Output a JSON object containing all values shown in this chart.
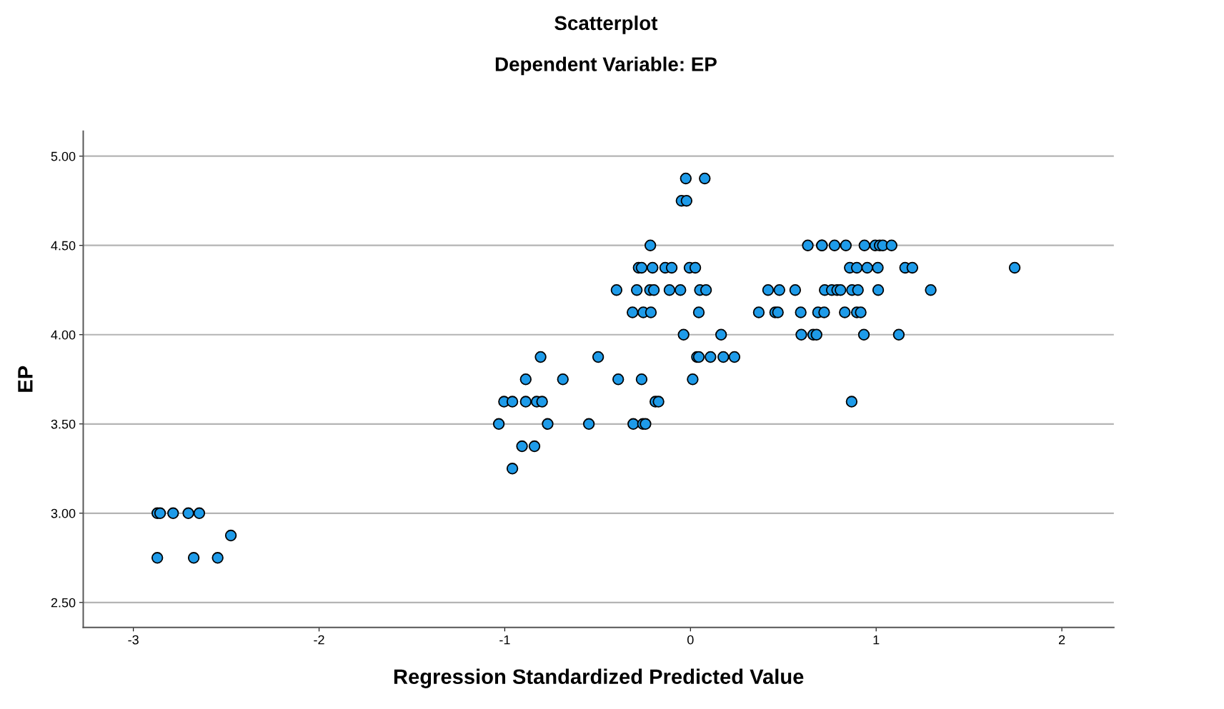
{
  "chart_data": {
    "type": "scatter",
    "title": "Scatterplot",
    "subtitle": "Dependent Variable: EP",
    "xlabel": "Regression Standardized Predicted Value",
    "ylabel": "EP",
    "xlim": [
      -3.27,
      2.28
    ],
    "ylim": [
      2.36,
      5.14
    ],
    "xticks": [
      -3,
      -2,
      -1,
      0,
      1,
      2
    ],
    "yticks": [
      {
        "value": 2.5,
        "label": "2.50"
      },
      {
        "value": 3.0,
        "label": "3.00"
      },
      {
        "value": 3.5,
        "label": "3.50"
      },
      {
        "value": 4.0,
        "label": "4.00"
      },
      {
        "value": 4.5,
        "label": "4.50"
      },
      {
        "value": 5.0,
        "label": "5.00"
      }
    ],
    "grid": "y",
    "marker": "circle",
    "legend": false,
    "series": [
      {
        "color": "#1e9be9",
        "x": [
          -0.025,
          0.077,
          -0.048,
          -0.021,
          -0.216,
          -0.279,
          -0.263,
          -0.204,
          -0.136,
          -0.101,
          -0.005,
          0.026,
          -0.398,
          -0.289,
          -0.218,
          -0.197,
          -0.113,
          -0.054,
          0.051,
          0.084,
          -0.312,
          -0.254,
          -0.213,
          0.045,
          -0.037,
          0.165,
          -0.807,
          -0.497,
          0.035,
          0.045,
          0.108,
          0.177,
          0.237,
          -0.887,
          -0.687,
          -0.389,
          -0.263,
          0.012,
          -1.004,
          -0.959,
          -0.887,
          -0.828,
          -0.799,
          -0.189,
          -0.172,
          -1.032,
          -0.769,
          -0.547,
          -0.308,
          -0.256,
          -0.242,
          -0.907,
          -0.84,
          -0.959,
          0.632,
          0.708,
          0.708,
          0.776,
          0.837,
          0.937,
          0.995,
          1.019,
          1.036,
          1.083,
          0.858,
          0.896,
          0.952,
          1.009,
          1.156,
          1.195,
          1.746,
          0.418,
          0.479,
          0.564,
          0.723,
          0.761,
          0.79,
          0.808,
          0.87,
          0.902,
          1.011,
          1.294,
          0.368,
          0.456,
          0.471,
          0.594,
          0.687,
          0.72,
          0.831,
          0.896,
          0.917,
          0.597,
          0.661,
          0.679,
          0.934,
          1.122,
          0.868,
          -2.871,
          -2.856,
          -2.786,
          -2.704,
          -2.645,
          -2.475,
          -2.871,
          -2.675,
          -2.546
        ],
        "values": [
          4.875,
          4.875,
          4.75,
          4.75,
          4.5,
          4.375,
          4.375,
          4.375,
          4.375,
          4.375,
          4.375,
          4.375,
          4.25,
          4.25,
          4.25,
          4.25,
          4.25,
          4.25,
          4.25,
          4.25,
          4.125,
          4.125,
          4.125,
          4.125,
          4.0,
          4.0,
          3.875,
          3.875,
          3.875,
          3.875,
          3.875,
          3.875,
          3.875,
          3.75,
          3.75,
          3.75,
          3.75,
          3.75,
          3.625,
          3.625,
          3.625,
          3.625,
          3.625,
          3.625,
          3.625,
          3.5,
          3.5,
          3.5,
          3.5,
          3.5,
          3.5,
          3.375,
          3.375,
          3.25,
          4.5,
          4.5,
          4.5,
          4.5,
          4.5,
          4.5,
          4.5,
          4.5,
          4.5,
          4.5,
          4.375,
          4.375,
          4.375,
          4.375,
          4.375,
          4.375,
          4.375,
          4.25,
          4.25,
          4.25,
          4.25,
          4.25,
          4.25,
          4.25,
          4.25,
          4.25,
          4.25,
          4.25,
          4.125,
          4.125,
          4.125,
          4.125,
          4.125,
          4.125,
          4.125,
          4.125,
          4.125,
          4.0,
          4.0,
          4.0,
          4.0,
          4.0,
          3.625,
          3.0,
          3.0,
          3.0,
          3.0,
          3.0,
          2.875,
          2.75,
          2.75,
          2.75
        ]
      }
    ]
  }
}
